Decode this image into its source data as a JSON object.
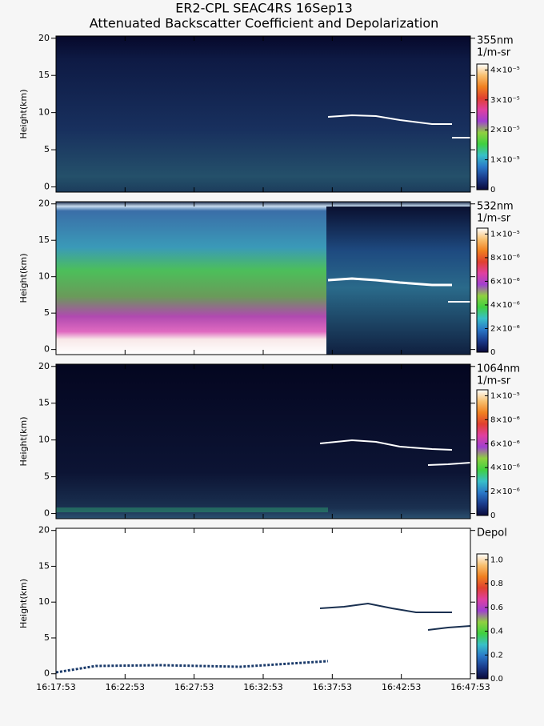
{
  "title": "ER2-CPL SEAC4RS 16Sep13",
  "subtitle": "Attenuated Backscatter Coefficient and Depolarization",
  "colormap": [
    "#0a0a3a",
    "#1a3a8a",
    "#2a78c8",
    "#38c0c8",
    "#40d040",
    "#90d040",
    "#a040d0",
    "#e040a0",
    "#e04030",
    "#f08020",
    "#f8c070",
    "#ffffff"
  ],
  "chart_data": [
    {
      "type": "heatmap",
      "channel": "355nm",
      "units": "1/m-sr",
      "ylabel": "Height(km)",
      "ylim": [
        -0.7,
        20.3
      ],
      "yticks": [
        0,
        5,
        10,
        15,
        20
      ],
      "clim": [
        0,
        4.2e-05
      ],
      "cticks": [
        0,
        {
          "value": 1e-05,
          "label": "1×10⁻⁵"
        },
        {
          "value": 2e-05,
          "label": "2×10⁻⁵"
        },
        {
          "value": 3e-05,
          "label": "3×10⁻⁵"
        },
        {
          "value": 4e-05,
          "label": "4×10⁻⁵"
        }
      ]
    },
    {
      "type": "heatmap",
      "channel": "532nm",
      "units": "1/m-sr",
      "ylabel": "Height(km)",
      "ylim": [
        -0.7,
        20.3
      ],
      "yticks": [
        0,
        5,
        10,
        15,
        20
      ],
      "clim": [
        0,
        1.05e-05
      ],
      "cticks": [
        0,
        {
          "value": 2e-06,
          "label": "2×10⁻⁶"
        },
        {
          "value": 4e-06,
          "label": "4×10⁻⁶"
        },
        {
          "value": 6e-06,
          "label": "6×10⁻⁶"
        },
        {
          "value": 8e-06,
          "label": "8×10⁻⁶"
        },
        {
          "value": 1e-05,
          "label": "1×10⁻⁵"
        }
      ]
    },
    {
      "type": "heatmap",
      "channel": "1064nm",
      "units": "1/m-sr",
      "ylabel": "Height(km)",
      "ylim": [
        -0.7,
        20.3
      ],
      "yticks": [
        0,
        5,
        10,
        15,
        20
      ],
      "clim": [
        0,
        1.05e-05
      ],
      "cticks": [
        0,
        {
          "value": 2e-06,
          "label": "2×10⁻⁶"
        },
        {
          "value": 4e-06,
          "label": "4×10⁻⁶"
        },
        {
          "value": 6e-06,
          "label": "6×10⁻⁶"
        },
        {
          "value": 8e-06,
          "label": "8×10⁻⁶"
        },
        {
          "value": 1e-05,
          "label": "1×10⁻⁵"
        }
      ]
    },
    {
      "type": "heatmap",
      "channel": "Depol",
      "ylabel": "Height(km)",
      "ylim": [
        -0.7,
        20.3
      ],
      "yticks": [
        0,
        5,
        10,
        15,
        20
      ],
      "clim": [
        0,
        1.05
      ],
      "cticks": [
        {
          "value": 0,
          "label": "0.0"
        },
        {
          "value": 0.2,
          "label": "0.2"
        },
        {
          "value": 0.4,
          "label": "0.4"
        },
        {
          "value": 0.6,
          "label": "0.6"
        },
        {
          "value": 0.8,
          "label": "0.8"
        },
        {
          "value": 1,
          "label": "1.0"
        }
      ],
      "xticks": [
        "16:17:53",
        "16:22:53",
        "16:27:53",
        "16:32:53",
        "16:37:53",
        "16:42:53",
        "16:47:53"
      ]
    }
  ]
}
